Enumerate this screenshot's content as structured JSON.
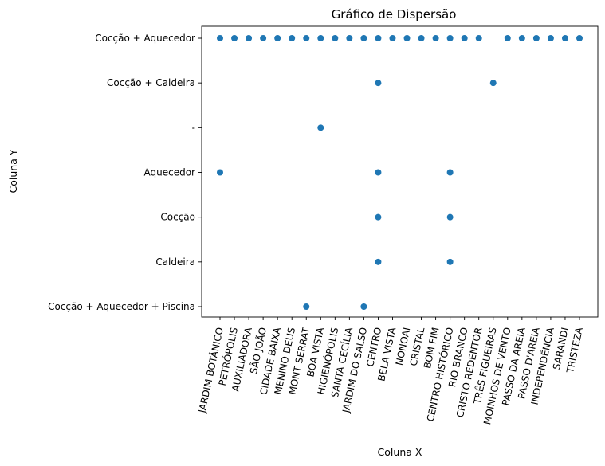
{
  "chart_data": {
    "type": "scatter",
    "title": "Gráfico de Dispersão",
    "xlabel": "Coluna X",
    "ylabel": "Coluna Y",
    "color": "#1f77b4",
    "x_categories": [
      "JARDIM BOTÂNICO",
      "PETRÓPOLIS",
      "AUXILIADORA",
      "SÃO JOÃO",
      "CIDADE BAIXA",
      "MENINO DEUS",
      "MONT SERRAT",
      "BOA VISTA",
      "HIGIENÓPOLIS",
      "SANTA CECÍLIA",
      "JARDIM DO SALSO",
      "CENTRO",
      "BELA VISTA",
      "NONOAI",
      "CRISTAL",
      "BOM FIM",
      "CENTRO HISTÓRICO",
      "RIO BRANCO",
      "CRISTO REDENTOR",
      "TRÊS FIGUEIRAS",
      "MOINHOS DE VENTO",
      "PASSO DA AREIA",
      "PASSO D'AREIA",
      "INDEPENDÊNCIA",
      "SARANDI",
      "TRISTEZA"
    ],
    "y_categories": [
      "Cocção + Aquecedor",
      "Cocção + Caldeira",
      "-",
      "Aquecedor",
      "Cocção",
      "Caldeira",
      "Cocção + Aquecedor + Piscina"
    ],
    "points": [
      {
        "x": "JARDIM BOTÂNICO",
        "y": "Cocção + Aquecedor"
      },
      {
        "x": "PETRÓPOLIS",
        "y": "Cocção + Aquecedor"
      },
      {
        "x": "AUXILIADORA",
        "y": "Cocção + Aquecedor"
      },
      {
        "x": "SÃO JOÃO",
        "y": "Cocção + Aquecedor"
      },
      {
        "x": "CIDADE BAIXA",
        "y": "Cocção + Aquecedor"
      },
      {
        "x": "MENINO DEUS",
        "y": "Cocção + Aquecedor"
      },
      {
        "x": "MONT SERRAT",
        "y": "Cocção + Aquecedor"
      },
      {
        "x": "BOA VISTA",
        "y": "Cocção + Aquecedor"
      },
      {
        "x": "HIGIENÓPOLIS",
        "y": "Cocção + Aquecedor"
      },
      {
        "x": "SANTA CECÍLIA",
        "y": "Cocção + Aquecedor"
      },
      {
        "x": "JARDIM DO SALSO",
        "y": "Cocção + Aquecedor"
      },
      {
        "x": "CENTRO",
        "y": "Cocção + Aquecedor"
      },
      {
        "x": "BELA VISTA",
        "y": "Cocção + Aquecedor"
      },
      {
        "x": "NONOAI",
        "y": "Cocção + Aquecedor"
      },
      {
        "x": "CRISTAL",
        "y": "Cocção + Aquecedor"
      },
      {
        "x": "BOM FIM",
        "y": "Cocção + Aquecedor"
      },
      {
        "x": "CENTRO HISTÓRICO",
        "y": "Cocção + Aquecedor"
      },
      {
        "x": "RIO BRANCO",
        "y": "Cocção + Aquecedor"
      },
      {
        "x": "CRISTO REDENTOR",
        "y": "Cocção + Aquecedor"
      },
      {
        "x": "MOINHOS DE VENTO",
        "y": "Cocção + Aquecedor"
      },
      {
        "x": "PASSO DA AREIA",
        "y": "Cocção + Aquecedor"
      },
      {
        "x": "PASSO D'AREIA",
        "y": "Cocção + Aquecedor"
      },
      {
        "x": "INDEPENDÊNCIA",
        "y": "Cocção + Aquecedor"
      },
      {
        "x": "SARANDI",
        "y": "Cocção + Aquecedor"
      },
      {
        "x": "TRISTEZA",
        "y": "Cocção + Aquecedor"
      },
      {
        "x": "CENTRO",
        "y": "Cocção + Caldeira"
      },
      {
        "x": "TRÊS FIGUEIRAS",
        "y": "Cocção + Caldeira"
      },
      {
        "x": "BOA VISTA",
        "y": "-"
      },
      {
        "x": "JARDIM BOTÂNICO",
        "y": "Aquecedor"
      },
      {
        "x": "CENTRO",
        "y": "Aquecedor"
      },
      {
        "x": "CENTRO HISTÓRICO",
        "y": "Aquecedor"
      },
      {
        "x": "CENTRO",
        "y": "Cocção"
      },
      {
        "x": "CENTRO HISTÓRICO",
        "y": "Cocção"
      },
      {
        "x": "CENTRO",
        "y": "Caldeira"
      },
      {
        "x": "CENTRO HISTÓRICO",
        "y": "Caldeira"
      },
      {
        "x": "MONT SERRAT",
        "y": "Cocção + Aquecedor + Piscina"
      },
      {
        "x": "JARDIM DO SALSO",
        "y": "Cocção + Aquecedor + Piscina"
      }
    ],
    "grid": false,
    "legend": false
  }
}
